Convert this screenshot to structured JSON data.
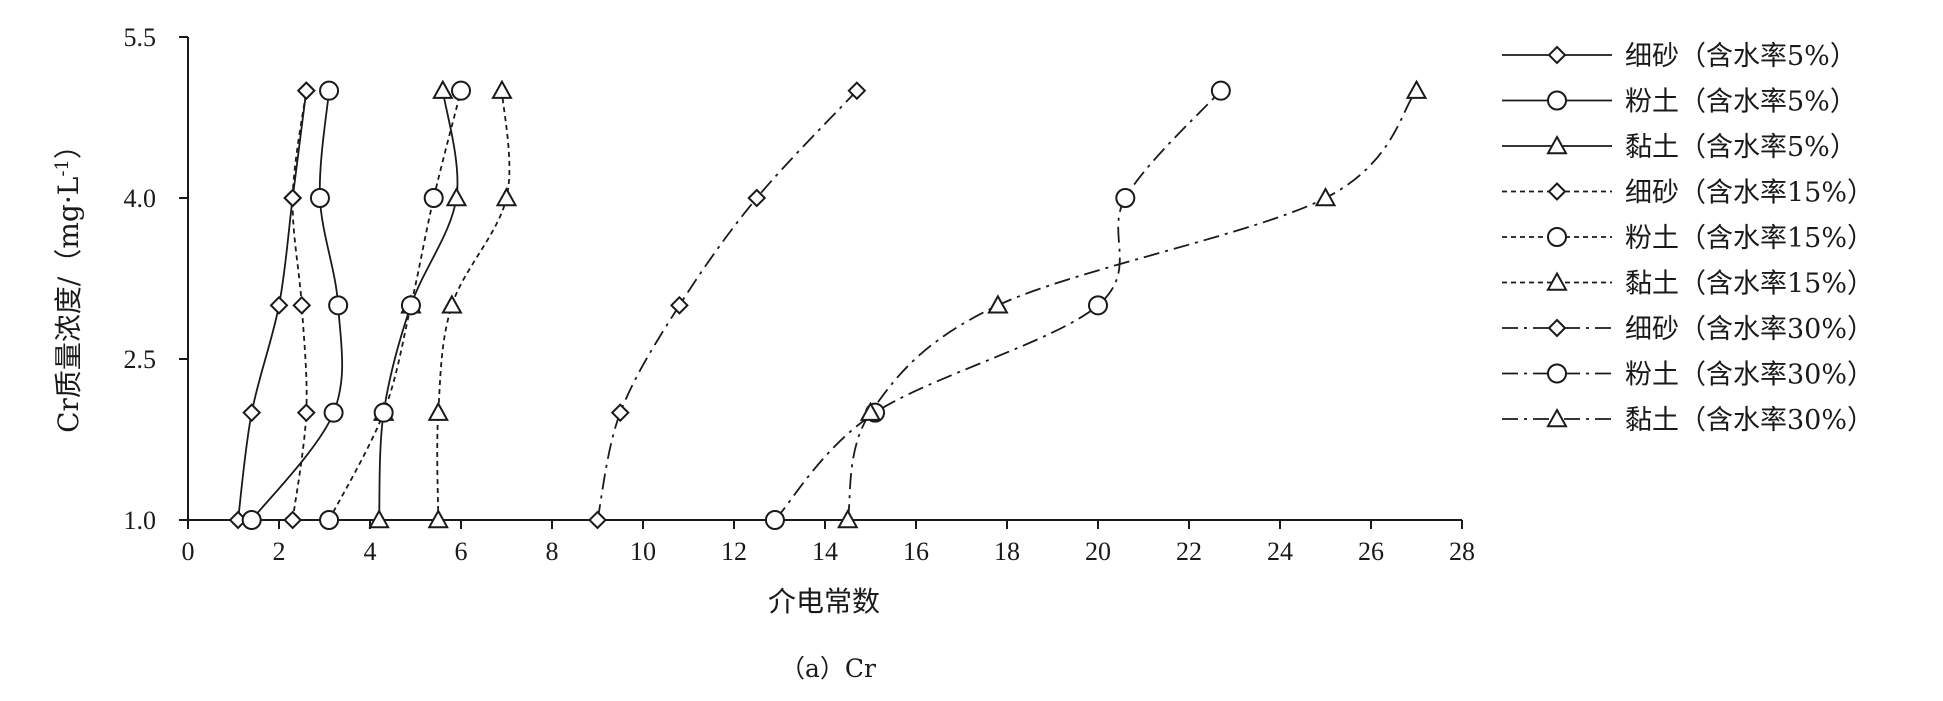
{
  "chart_data": {
    "type": "line",
    "xlabel": "介电常数",
    "ylabel": "Cr质量浓度/（mg·L",
    "ylabel_sup": "-1",
    "ylabel_close": "）",
    "caption": "（a）Cr",
    "xlim": [
      0,
      28
    ],
    "ylim": [
      1.0,
      5.5
    ],
    "xticks": [
      0,
      2,
      4,
      6,
      8,
      10,
      12,
      14,
      16,
      18,
      20,
      22,
      24,
      26,
      28
    ],
    "xtick_labels": [
      "0",
      "2",
      "4",
      "6",
      "8",
      "10",
      "12",
      "14",
      "16",
      "18",
      "20",
      "22",
      "24",
      "26",
      "28"
    ],
    "yticks": [
      1.0,
      2.5,
      4.0,
      5.5
    ],
    "ytick_labels": [
      "1.0",
      "2.5",
      "4.0",
      "5.5"
    ],
    "grid": false,
    "legend_position": "right",
    "series": [
      {
        "name": "细砂（含水率5%）",
        "marker": "diamond",
        "line": "solid",
        "points": [
          [
            1.1,
            1.0
          ],
          [
            1.4,
            2.0
          ],
          [
            2.0,
            3.0
          ],
          [
            2.3,
            4.0
          ],
          [
            2.6,
            5.0
          ]
        ]
      },
      {
        "name": "粉土（含水率5%）",
        "marker": "circle",
        "line": "solid",
        "points": [
          [
            1.4,
            1.0
          ],
          [
            3.2,
            2.0
          ],
          [
            3.3,
            3.0
          ],
          [
            2.9,
            4.0
          ],
          [
            3.1,
            5.0
          ]
        ]
      },
      {
        "name": "黏土（含水率5%）",
        "marker": "triangle",
        "line": "solid",
        "points": [
          [
            4.2,
            1.0
          ],
          [
            4.3,
            2.0
          ],
          [
            4.9,
            3.0
          ],
          [
            5.9,
            4.0
          ],
          [
            5.6,
            5.0
          ]
        ]
      },
      {
        "name": "细砂（含水率15%）",
        "marker": "diamond",
        "line": "dotted",
        "points": [
          [
            2.3,
            1.0
          ],
          [
            2.6,
            2.0
          ],
          [
            2.5,
            3.0
          ],
          [
            2.3,
            4.0
          ],
          [
            2.6,
            5.0
          ]
        ]
      },
      {
        "name": "粉土（含水率15%）",
        "marker": "circle",
        "line": "dotted",
        "points": [
          [
            3.1,
            1.0
          ],
          [
            4.3,
            2.0
          ],
          [
            4.9,
            3.0
          ],
          [
            5.4,
            4.0
          ],
          [
            6.0,
            5.0
          ]
        ]
      },
      {
        "name": "黏土（含水率15%）",
        "marker": "triangle",
        "line": "dotted",
        "points": [
          [
            5.5,
            1.0
          ],
          [
            5.5,
            2.0
          ],
          [
            5.8,
            3.0
          ],
          [
            7.0,
            4.0
          ],
          [
            6.9,
            5.0
          ]
        ]
      },
      {
        "name": "细砂（含水率30%）",
        "marker": "diamond",
        "line": "dashdot",
        "points": [
          [
            9.0,
            1.0
          ],
          [
            9.5,
            2.0
          ],
          [
            10.8,
            3.0
          ],
          [
            12.5,
            4.0
          ],
          [
            14.7,
            5.0
          ]
        ]
      },
      {
        "name": "粉土（含水率30%）",
        "marker": "circle",
        "line": "dashdot",
        "points": [
          [
            12.9,
            1.0
          ],
          [
            15.1,
            2.0
          ],
          [
            20.0,
            3.0
          ],
          [
            20.6,
            4.0
          ],
          [
            22.7,
            5.0
          ]
        ]
      },
      {
        "name": "黏土（含水率30%）",
        "marker": "triangle",
        "line": "dashdot",
        "points": [
          [
            14.5,
            1.0
          ],
          [
            15.0,
            2.0
          ],
          [
            17.8,
            3.0
          ],
          [
            25.0,
            4.0
          ],
          [
            27.0,
            5.0
          ]
        ]
      }
    ]
  }
}
